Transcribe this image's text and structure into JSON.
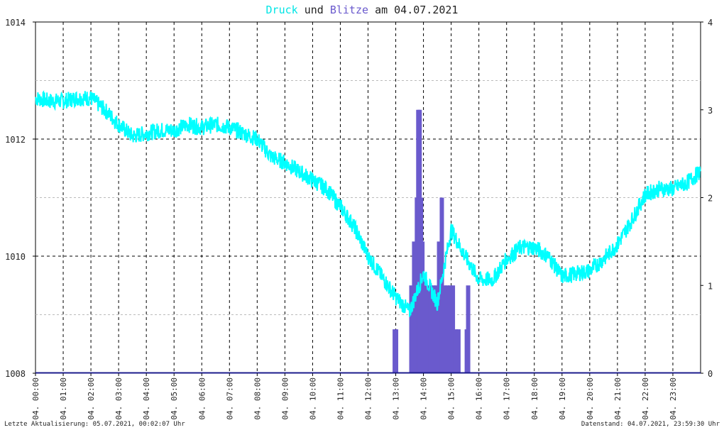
{
  "title": {
    "part1": "Druck",
    "part2": "und",
    "part3": "Blitze",
    "part4": "am 04.07.2021"
  },
  "colors": {
    "pressure": "#00ffff",
    "lightning": "#6a5acd",
    "grid": "#000000",
    "grid_minor": "#bbbbbb"
  },
  "footer": {
    "left": "Letzte Aktualisierung: 05.07.2021, 00:02:07 Uhr",
    "right": "Datenstand: 04.07.2021, 23:59:30 Uhr"
  },
  "chart_data": {
    "type": "line",
    "title": "Druck und Blitze am 04.07.2021",
    "x_ticks": [
      "04. 00:00",
      "04. 01:00",
      "04. 02:00",
      "04. 03:00",
      "04. 04:00",
      "04. 05:00",
      "04. 06:00",
      "04. 07:00",
      "04. 08:00",
      "04. 09:00",
      "04. 10:00",
      "04. 11:00",
      "04. 12:00",
      "04. 13:00",
      "04. 14:00",
      "04. 15:00",
      "04. 16:00",
      "04. 17:00",
      "04. 18:00",
      "04. 19:00",
      "04. 20:00",
      "04. 21:00",
      "04. 22:00",
      "04. 23:00"
    ],
    "y_left": {
      "label": "",
      "ticks": [
        "1014",
        "1012",
        "1010",
        "1008"
      ],
      "range": [
        1008,
        1014
      ]
    },
    "y_right": {
      "label": "",
      "ticks": [
        "4",
        "3",
        "2",
        "1",
        "0"
      ],
      "range": [
        0,
        4
      ]
    },
    "grid": true,
    "series": [
      {
        "name": "Druck",
        "kind": "line",
        "axis": "left",
        "x_hours": [
          0,
          0.5,
          1,
          1.5,
          2,
          2.5,
          3,
          3.5,
          4,
          4.5,
          5,
          5.5,
          6,
          6.5,
          7,
          7.5,
          8,
          8.5,
          9,
          9.5,
          10,
          10.5,
          11,
          11.5,
          12,
          12.5,
          13,
          13.5,
          14,
          14.5,
          15,
          15.5,
          16,
          16.5,
          17,
          17.5,
          18,
          18.5,
          19,
          19.5,
          20,
          20.5,
          21,
          21.5,
          22,
          22.5,
          23,
          23.5,
          24
        ],
        "values": [
          1012.7,
          1012.65,
          1012.65,
          1012.7,
          1012.7,
          1012.5,
          1012.25,
          1012.05,
          1012.1,
          1012.15,
          1012.15,
          1012.25,
          1012.2,
          1012.25,
          1012.2,
          1012.1,
          1012.0,
          1011.7,
          1011.6,
          1011.45,
          1011.3,
          1011.15,
          1010.85,
          1010.5,
          1010.0,
          1009.65,
          1009.3,
          1009.05,
          1009.7,
          1009.2,
          1010.45,
          1010.0,
          1009.6,
          1009.6,
          1009.95,
          1010.15,
          1010.15,
          1010.0,
          1009.65,
          1009.7,
          1009.75,
          1009.95,
          1010.2,
          1010.6,
          1011.05,
          1011.15,
          1011.15,
          1011.25,
          1011.45
        ]
      },
      {
        "name": "Blitze",
        "kind": "bar",
        "axis": "right",
        "x_hours": [
          12.95,
          13.0,
          13.55,
          13.65,
          13.75,
          13.8,
          13.85,
          13.9,
          13.95,
          14.05,
          14.15,
          14.25,
          14.35,
          14.45,
          14.55,
          14.65,
          14.75,
          14.8,
          14.85,
          14.95,
          15.05,
          15.15,
          15.25,
          15.55,
          15.6
        ],
        "values": [
          0.5,
          0.5,
          1,
          1.5,
          2,
          3,
          3,
          2,
          1.5,
          1,
          1,
          1,
          1,
          1,
          1.5,
          2,
          1,
          0.5,
          1,
          1,
          1,
          0.5,
          0.5,
          0.5,
          1
        ]
      }
    ]
  }
}
